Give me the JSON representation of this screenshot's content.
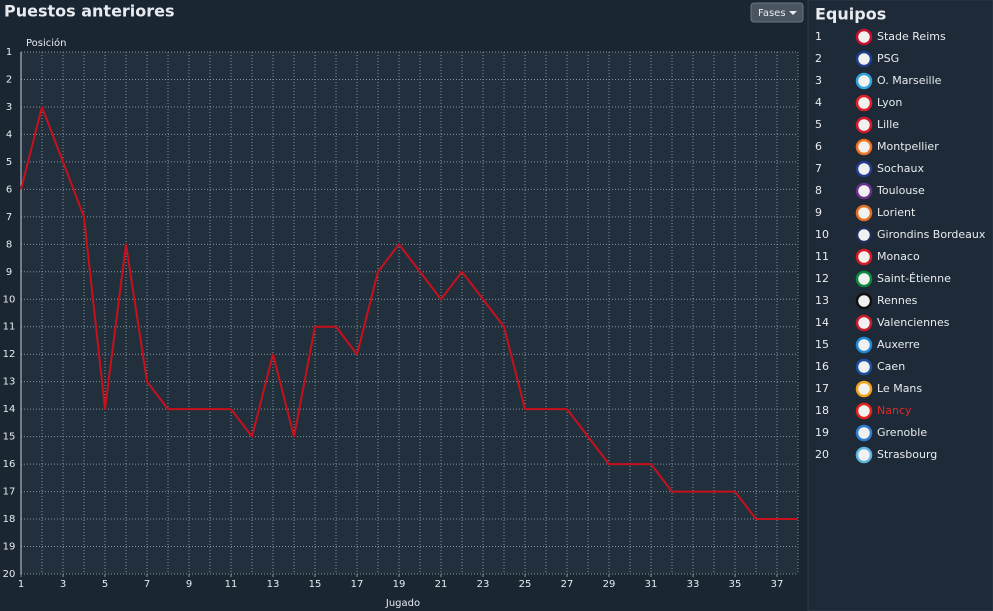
{
  "header": {
    "title": "Puestos anteriores",
    "button": "Fases"
  },
  "chart_data": {
    "type": "line",
    "ylabel": "Posición",
    "xlabel": "Jugado",
    "x": [
      1,
      2,
      3,
      4,
      5,
      6,
      7,
      8,
      9,
      10,
      11,
      12,
      13,
      14,
      15,
      16,
      17,
      18,
      19,
      20,
      21,
      22,
      23,
      24,
      25,
      26,
      27,
      28,
      29,
      30,
      31,
      32,
      33,
      34,
      35,
      36,
      37,
      38
    ],
    "values": [
      6,
      3,
      5,
      7,
      14,
      8,
      13,
      14,
      14,
      14,
      14,
      15,
      12,
      15,
      11,
      11,
      12,
      9,
      8,
      9,
      10,
      9,
      10,
      11,
      14,
      14,
      14,
      15,
      16,
      16,
      16,
      17,
      17,
      17,
      17,
      18,
      18,
      18
    ],
    "color": "#c8101c",
    "xlim": [
      1,
      38
    ],
    "xticks": [
      1,
      3,
      5,
      7,
      9,
      11,
      13,
      15,
      17,
      19,
      21,
      23,
      25,
      27,
      29,
      31,
      33,
      35,
      37
    ],
    "ylim": [
      1,
      20
    ],
    "yticks": [
      1,
      2,
      3,
      4,
      5,
      6,
      7,
      8,
      9,
      10,
      11,
      12,
      13,
      14,
      15,
      16,
      17,
      18,
      19,
      20
    ],
    "y_inverted": true,
    "grid": true
  },
  "sidebar": {
    "title": "Equipos",
    "teams": [
      {
        "pos": 1,
        "name": "Stade Reims"
      },
      {
        "pos": 2,
        "name": "PSG"
      },
      {
        "pos": 3,
        "name": "O. Marseille"
      },
      {
        "pos": 4,
        "name": "Lyon"
      },
      {
        "pos": 5,
        "name": "Lille"
      },
      {
        "pos": 6,
        "name": "Montpellier"
      },
      {
        "pos": 7,
        "name": "Sochaux"
      },
      {
        "pos": 8,
        "name": "Toulouse"
      },
      {
        "pos": 9,
        "name": "Lorient"
      },
      {
        "pos": 10,
        "name": "Girondins Bordeaux"
      },
      {
        "pos": 11,
        "name": "Monaco"
      },
      {
        "pos": 12,
        "name": "Saint-Étienne"
      },
      {
        "pos": 13,
        "name": "Rennes"
      },
      {
        "pos": 14,
        "name": "Valenciennes"
      },
      {
        "pos": 15,
        "name": "Auxerre"
      },
      {
        "pos": 16,
        "name": "Caen"
      },
      {
        "pos": 17,
        "name": "Le Mans"
      },
      {
        "pos": 18,
        "name": "Nancy",
        "highlighted": true
      },
      {
        "pos": 19,
        "name": "Grenoble"
      },
      {
        "pos": 20,
        "name": "Strasbourg"
      }
    ]
  }
}
